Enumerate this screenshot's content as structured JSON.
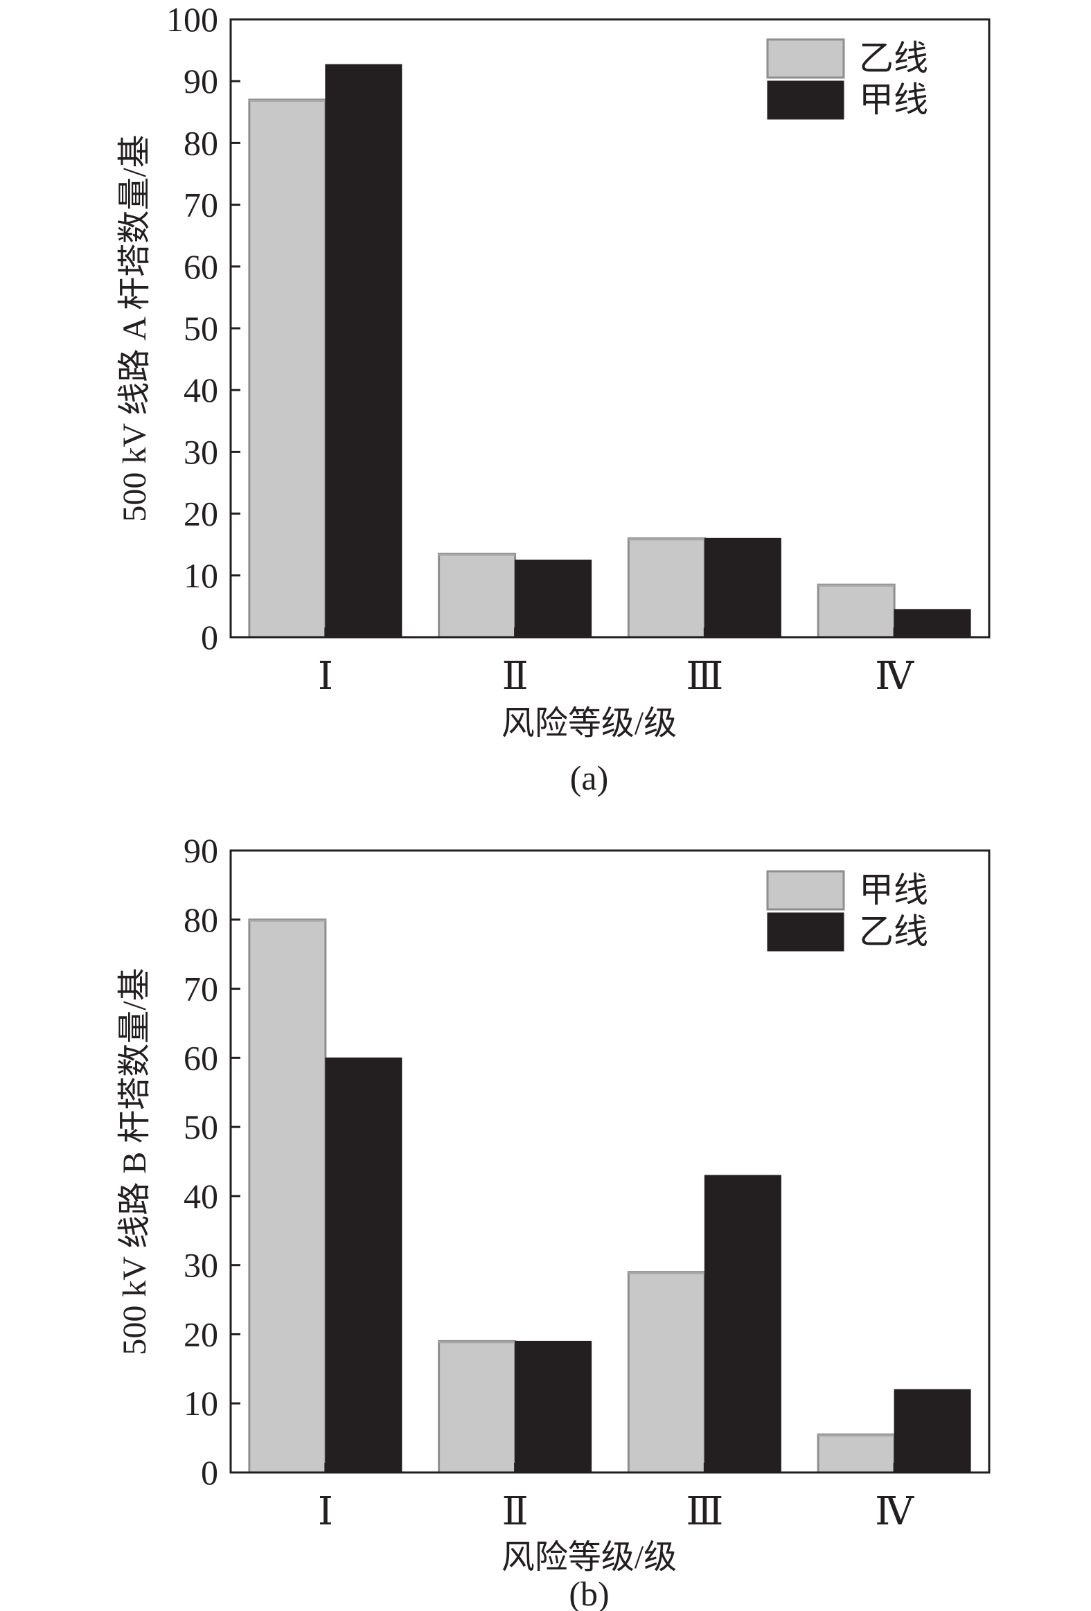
{
  "colors": {
    "light_bar": "#c8c8c8",
    "light_bar_edge": "#8e8e8e",
    "dark_bar": "#231f20",
    "axis": "#231f20"
  },
  "chart_data": [
    {
      "type": "bar",
      "caption": "(a)",
      "xlabel": "风险等级/级",
      "ylabel": "500 kV 线路 A 杆塔数量/基",
      "categories": [
        "Ⅰ",
        "Ⅱ",
        "Ⅲ",
        "Ⅳ"
      ],
      "ylim": [
        0,
        100
      ],
      "yticks": [
        0,
        10,
        20,
        30,
        40,
        50,
        60,
        70,
        80,
        90,
        100
      ],
      "legend_position": "top-right",
      "series": [
        {
          "name": "乙线",
          "color": "#c8c8c8",
          "values": [
            87,
            13.5,
            16,
            8.5
          ]
        },
        {
          "name": "甲线",
          "color": "#231f20",
          "values": [
            92.7,
            12.5,
            16,
            4.5
          ]
        }
      ]
    },
    {
      "type": "bar",
      "caption": "(b)",
      "xlabel": "风险等级/级",
      "ylabel": "500 kV 线路 B 杆塔数量/基",
      "categories": [
        "Ⅰ",
        "Ⅱ",
        "Ⅲ",
        "Ⅳ"
      ],
      "ylim": [
        0,
        90
      ],
      "yticks": [
        0,
        10,
        20,
        30,
        40,
        50,
        60,
        70,
        80,
        90
      ],
      "legend_position": "top-right",
      "series": [
        {
          "name": "甲线",
          "color": "#c8c8c8",
          "values": [
            80,
            19,
            29,
            5.5
          ]
        },
        {
          "name": "乙线",
          "color": "#231f20",
          "values": [
            60,
            19,
            43,
            12
          ]
        }
      ]
    }
  ]
}
